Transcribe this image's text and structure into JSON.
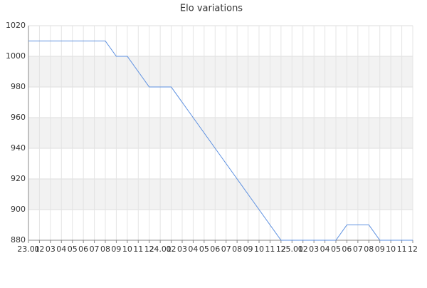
{
  "chart_data": {
    "type": "line",
    "title": "Elo variations",
    "categories": [
      "23.01",
      "02",
      "03",
      "04",
      "05",
      "06",
      "07",
      "08",
      "09",
      "10",
      "11",
      "12",
      "24.01",
      "02",
      "03",
      "04",
      "05",
      "06",
      "07",
      "08",
      "09",
      "10",
      "11",
      "12",
      "25.01",
      "02",
      "03",
      "04",
      "05",
      "06",
      "07",
      "08",
      "09",
      "10",
      "11",
      "12"
    ],
    "values": [
      1010,
      1010,
      1010,
      1010,
      1010,
      1010,
      1010,
      1010,
      1000,
      1000,
      990,
      980,
      980,
      980,
      970,
      960,
      950,
      940,
      930,
      920,
      910,
      900,
      890,
      880,
      880,
      880,
      880,
      880,
      880,
      890,
      890,
      890,
      880,
      880,
      880,
      880
    ],
    "color": "#5b8fe0",
    "ylim": [
      880,
      1020
    ],
    "yticks": [
      880,
      900,
      920,
      940,
      960,
      980,
      1000,
      1020
    ],
    "grid": true
  }
}
